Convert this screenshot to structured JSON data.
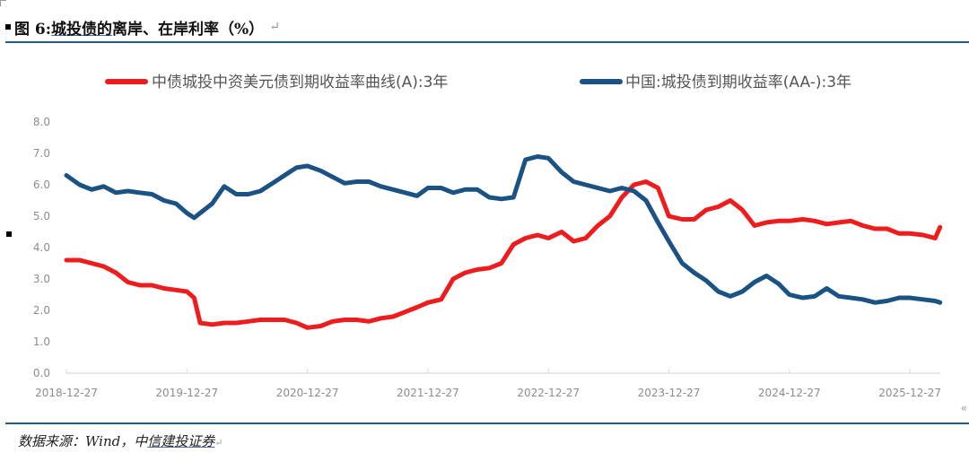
{
  "figure": {
    "label": "图 6:",
    "title_underlined": "城投债的",
    "title_rest": "离岸、在岸利率（%）",
    "paragraph_mark": "↵"
  },
  "source": {
    "prefix": "数据来源：Wind，中",
    "underlined": "信建投证券",
    "mark": "↵"
  },
  "colors": {
    "offshore": "#ee1c1c",
    "onshore": "#1a5383",
    "rule": "#1f5a8a",
    "axis": "#d9d9d9",
    "tick_text": "#8c8c8c"
  },
  "chart_data": {
    "type": "line",
    "title": "图 6:城投债的离岸、在岸利率（%）",
    "xlabel": "",
    "ylabel": "",
    "ylim": [
      0,
      8
    ],
    "yticks": [
      "0.0",
      "1.0",
      "2.0",
      "3.0",
      "4.0",
      "5.0",
      "6.0",
      "7.0",
      "8.0"
    ],
    "xticks": [
      "2018-12-27",
      "2019-12-27",
      "2020-12-27",
      "2021-12-27",
      "2022-12-27",
      "2023-12-27",
      "2024-12-27",
      "2025-12-27"
    ],
    "grid": false,
    "legend_position": "top",
    "x": [
      2018.99,
      2019.1,
      2019.2,
      2019.3,
      2019.4,
      2019.5,
      2019.6,
      2019.7,
      2019.8,
      2019.9,
      2019.99,
      2020.05,
      2020.1,
      2020.2,
      2020.3,
      2020.4,
      2020.5,
      2020.6,
      2020.7,
      2020.8,
      2020.9,
      2020.99,
      2021.1,
      2021.2,
      2021.3,
      2021.4,
      2021.5,
      2021.6,
      2021.7,
      2021.8,
      2021.9,
      2021.99,
      2022.1,
      2022.2,
      2022.3,
      2022.4,
      2022.5,
      2022.6,
      2022.7,
      2022.8,
      2022.9,
      2022.99,
      2023.1,
      2023.2,
      2023.3,
      2023.4,
      2023.5,
      2023.6,
      2023.7,
      2023.8,
      2023.9,
      2023.99,
      2024.1,
      2024.2,
      2024.3,
      2024.4,
      2024.5,
      2024.6,
      2024.7,
      2024.8,
      2024.9,
      2024.99,
      2025.1,
      2025.2,
      2025.3,
      2025.4,
      2025.5,
      2025.6,
      2025.7,
      2025.8,
      2025.9,
      2025.99,
      2026.1,
      2026.2,
      2026.24
    ],
    "series": [
      {
        "name": "中债城投中资美元债到期收益率曲线(A):3年",
        "color": "#ee1c1c",
        "values": [
          3.6,
          3.6,
          3.5,
          3.4,
          3.2,
          2.9,
          2.8,
          2.8,
          2.7,
          2.65,
          2.6,
          2.4,
          1.6,
          1.55,
          1.6,
          1.6,
          1.65,
          1.7,
          1.7,
          1.7,
          1.6,
          1.45,
          1.5,
          1.65,
          1.7,
          1.7,
          1.65,
          1.75,
          1.8,
          1.95,
          2.1,
          2.25,
          2.35,
          3.0,
          3.2,
          3.3,
          3.35,
          3.5,
          4.1,
          4.3,
          4.4,
          4.3,
          4.5,
          4.2,
          4.3,
          4.7,
          5.0,
          5.6,
          6.0,
          6.1,
          5.9,
          5.0,
          4.9,
          4.9,
          5.2,
          5.3,
          5.5,
          5.2,
          4.7,
          4.8,
          4.85,
          4.85,
          4.9,
          4.85,
          4.75,
          4.8,
          4.85,
          4.7,
          4.6,
          4.6,
          4.45,
          4.45,
          4.4,
          4.3,
          4.65
        ]
      },
      {
        "name": "中国:城投债到期收益率(AA-):3年",
        "color": "#1a5383",
        "values": [
          6.3,
          6.0,
          5.85,
          5.95,
          5.75,
          5.8,
          5.75,
          5.7,
          5.5,
          5.4,
          5.1,
          4.95,
          5.1,
          5.4,
          5.95,
          5.7,
          5.7,
          5.8,
          6.05,
          6.3,
          6.55,
          6.6,
          6.45,
          6.25,
          6.05,
          6.1,
          6.1,
          5.95,
          5.85,
          5.75,
          5.65,
          5.9,
          5.9,
          5.75,
          5.85,
          5.85,
          5.6,
          5.55,
          5.6,
          6.8,
          6.9,
          6.85,
          6.4,
          6.1,
          6.0,
          5.9,
          5.8,
          5.9,
          5.8,
          5.5,
          4.8,
          4.2,
          3.5,
          3.2,
          2.95,
          2.6,
          2.45,
          2.6,
          2.9,
          3.1,
          2.85,
          2.5,
          2.4,
          2.45,
          2.7,
          2.45,
          2.4,
          2.35,
          2.25,
          2.3,
          2.4,
          2.4,
          2.35,
          2.3,
          2.25
        ]
      }
    ]
  }
}
